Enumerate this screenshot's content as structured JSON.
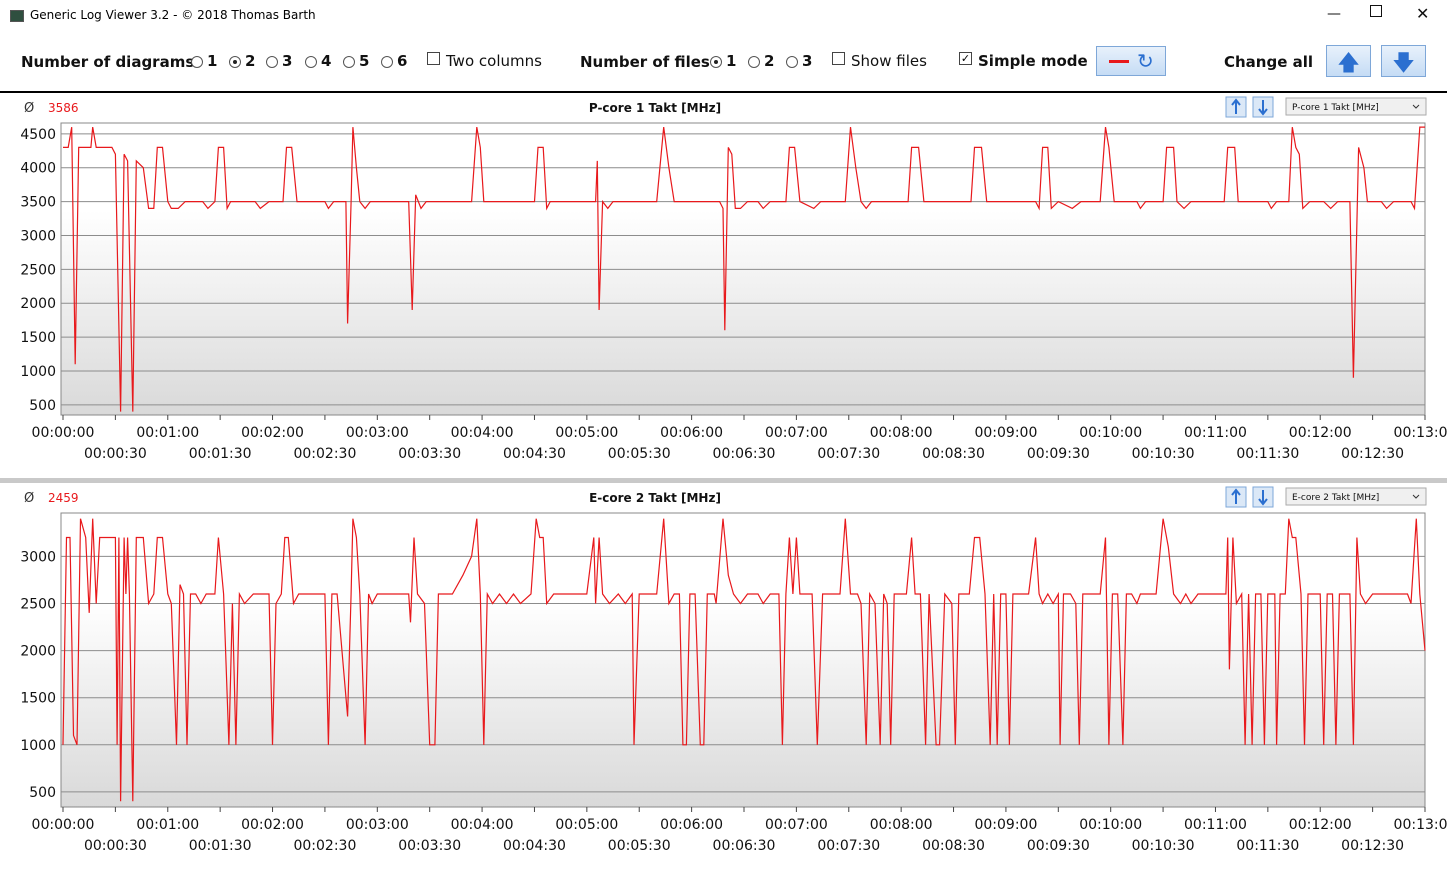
{
  "window": {
    "title": "Generic Log Viewer 3.2 - © 2018 Thomas Barth"
  },
  "toolbar": {
    "diagrams": {
      "label": "Number of diagrams",
      "options": [
        1,
        2,
        3,
        4,
        5,
        6
      ],
      "selected": 2
    },
    "two_columns": {
      "label": "Two columns",
      "checked": false
    },
    "files": {
      "label": "Number of files",
      "options": [
        1,
        2,
        3
      ],
      "selected": 1
    },
    "show_files": {
      "label": "Show files",
      "checked": false
    },
    "simple_mode": {
      "label": "Simple mode",
      "checked": true
    },
    "change_all": "Change all"
  },
  "chart_data": [
    {
      "type": "line",
      "title": "P-core 1 Takt [MHz]",
      "selector": "P-core 1 Takt [MHz]",
      "average_symbol": "Ø",
      "average": 3586,
      "xlim": [
        0,
        780
      ],
      "ylim": [
        350,
        4660
      ],
      "grid": true,
      "xticks": [
        {
          "value": 0,
          "label": "00:00:00"
        },
        {
          "value": 30,
          "label": "00:00:30"
        },
        {
          "value": 60,
          "label": "00:01:00"
        },
        {
          "value": 90,
          "label": "00:01:30"
        },
        {
          "value": 120,
          "label": "00:02:00"
        },
        {
          "value": 150,
          "label": "00:02:30"
        },
        {
          "value": 180,
          "label": "00:03:00"
        },
        {
          "value": 210,
          "label": "00:03:30"
        },
        {
          "value": 240,
          "label": "00:04:00"
        },
        {
          "value": 270,
          "label": "00:04:30"
        },
        {
          "value": 300,
          "label": "00:05:00"
        },
        {
          "value": 330,
          "label": "00:05:30"
        },
        {
          "value": 360,
          "label": "00:06:00"
        },
        {
          "value": 390,
          "label": "00:06:30"
        },
        {
          "value": 420,
          "label": "00:07:00"
        },
        {
          "value": 450,
          "label": "00:07:30"
        },
        {
          "value": 480,
          "label": "00:08:00"
        },
        {
          "value": 510,
          "label": "00:08:30"
        },
        {
          "value": 540,
          "label": "00:09:00"
        },
        {
          "value": 570,
          "label": "00:09:30"
        },
        {
          "value": 600,
          "label": "00:10:00"
        },
        {
          "value": 630,
          "label": "00:10:30"
        },
        {
          "value": 660,
          "label": "00:11:00"
        },
        {
          "value": 690,
          "label": "00:11:30"
        },
        {
          "value": 720,
          "label": "00:12:00"
        },
        {
          "value": 750,
          "label": "00:12:30"
        },
        {
          "value": 780,
          "label": "00:13:00"
        }
      ],
      "yticks": [
        500,
        1000,
        1500,
        2000,
        2500,
        3000,
        3500,
        4000,
        4500
      ],
      "x": [
        0,
        3,
        5,
        7,
        9,
        16,
        17,
        19,
        28,
        30,
        33,
        35,
        37,
        40,
        42,
        46,
        49,
        52,
        54,
        57,
        60,
        62,
        66,
        70,
        80,
        83,
        87,
        89,
        92,
        94,
        96,
        110,
        113,
        118,
        126,
        128,
        131,
        134,
        150,
        152,
        155,
        162,
        163,
        165,
        166,
        168,
        170,
        173,
        176,
        198,
        200,
        202,
        205,
        208,
        234,
        237,
        239,
        241,
        252,
        270,
        272,
        275,
        277,
        279,
        305,
        306,
        307,
        309,
        312,
        315,
        340,
        344,
        347,
        350,
        376,
        378,
        379,
        381,
        383,
        385,
        388,
        392,
        398,
        401,
        405,
        414,
        416,
        419,
        422,
        430,
        434,
        448,
        451,
        454,
        457,
        460,
        463,
        484,
        486,
        490,
        493,
        520,
        522,
        526,
        529,
        557,
        559,
        561,
        564,
        566,
        570,
        578,
        583,
        594,
        597,
        599,
        602,
        615,
        617,
        620,
        630,
        632,
        636,
        638,
        642,
        646,
        665,
        667,
        671,
        673,
        690,
        692,
        695,
        702,
        704,
        706,
        708,
        710,
        714,
        722,
        726,
        730,
        737,
        739,
        742,
        745,
        747,
        755,
        758,
        762,
        772,
        774,
        777,
        780
      ],
      "series": [
        {
          "color": "#e8191c",
          "values": [
            4300,
            4300,
            4600,
            1100,
            4300,
            4300,
            4600,
            4300,
            4300,
            4200,
            400,
            4200,
            4100,
            400,
            4100,
            4000,
            3400,
            3400,
            4300,
            4300,
            3500,
            3400,
            3400,
            3500,
            3500,
            3400,
            3500,
            4300,
            4300,
            3400,
            3500,
            3500,
            3400,
            3500,
            3500,
            4300,
            4300,
            3500,
            3500,
            3400,
            3500,
            3500,
            1700,
            3500,
            4600,
            4000,
            3500,
            3400,
            3500,
            3500,
            1900,
            3600,
            3400,
            3500,
            3500,
            4600,
            4300,
            3500,
            3500,
            3500,
            4300,
            4300,
            3400,
            3500,
            3500,
            4100,
            1900,
            3500,
            3400,
            3500,
            3500,
            4600,
            4000,
            3500,
            3500,
            3400,
            1600,
            4300,
            4200,
            3400,
            3400,
            3500,
            3500,
            3400,
            3500,
            3500,
            4300,
            4300,
            3500,
            3400,
            3500,
            3500,
            4600,
            4000,
            3500,
            3400,
            3500,
            3500,
            4300,
            4300,
            3500,
            3500,
            4300,
            4300,
            3500,
            3500,
            3400,
            4300,
            4300,
            3400,
            3500,
            3400,
            3500,
            3500,
            4600,
            4300,
            3500,
            3500,
            3400,
            3500,
            3500,
            4300,
            4300,
            3500,
            3400,
            3500,
            3500,
            4300,
            4300,
            3500,
            3500,
            3400,
            3500,
            3500,
            4600,
            4300,
            4200,
            3400,
            3500,
            3500,
            3400,
            3500,
            3500,
            900,
            4300,
            4000,
            3500,
            3500,
            3400,
            3500,
            3500,
            3400,
            4600,
            4600
          ]
        }
      ]
    },
    {
      "type": "line",
      "title": "E-core 2 Takt [MHz]",
      "selector": "E-core 2 Takt [MHz]",
      "average_symbol": "Ø",
      "average": 2459,
      "xlim": [
        0,
        780
      ],
      "ylim": [
        340,
        3460
      ],
      "grid": true,
      "xticks": [
        {
          "value": 0,
          "label": "00:00:00"
        },
        {
          "value": 30,
          "label": "00:00:30"
        },
        {
          "value": 60,
          "label": "00:01:00"
        },
        {
          "value": 90,
          "label": "00:01:30"
        },
        {
          "value": 120,
          "label": "00:02:00"
        },
        {
          "value": 150,
          "label": "00:02:30"
        },
        {
          "value": 180,
          "label": "00:03:00"
        },
        {
          "value": 210,
          "label": "00:03:30"
        },
        {
          "value": 240,
          "label": "00:04:00"
        },
        {
          "value": 270,
          "label": "00:04:30"
        },
        {
          "value": 300,
          "label": "00:05:00"
        },
        {
          "value": 330,
          "label": "00:05:30"
        },
        {
          "value": 360,
          "label": "00:06:00"
        },
        {
          "value": 390,
          "label": "00:06:30"
        },
        {
          "value": 420,
          "label": "00:07:00"
        },
        {
          "value": 450,
          "label": "00:07:30"
        },
        {
          "value": 480,
          "label": "00:08:00"
        },
        {
          "value": 510,
          "label": "00:08:30"
        },
        {
          "value": 540,
          "label": "00:09:00"
        },
        {
          "value": 570,
          "label": "00:09:30"
        },
        {
          "value": 600,
          "label": "00:10:00"
        },
        {
          "value": 630,
          "label": "00:10:30"
        },
        {
          "value": 660,
          "label": "00:11:00"
        },
        {
          "value": 690,
          "label": "00:11:30"
        },
        {
          "value": 720,
          "label": "00:12:00"
        },
        {
          "value": 750,
          "label": "00:12:30"
        },
        {
          "value": 780,
          "label": "00:13:00"
        }
      ],
      "yticks": [
        500,
        1000,
        1500,
        2000,
        2500,
        3000
      ],
      "x": [
        0,
        2,
        4,
        6,
        8,
        10,
        13,
        15,
        17,
        19,
        21,
        30,
        31,
        32,
        33,
        35,
        36,
        37,
        38,
        40,
        42,
        46,
        49,
        52,
        54,
        57,
        60,
        62,
        65,
        67,
        69,
        71,
        73,
        76,
        79,
        82,
        87,
        89,
        92,
        95,
        97,
        99,
        101,
        104,
        109,
        118,
        120,
        122,
        125,
        127,
        129,
        132,
        135,
        150,
        152,
        154,
        157,
        163,
        165,
        166,
        168,
        170,
        173,
        175,
        177,
        180,
        198,
        199,
        201,
        203,
        207,
        210,
        213,
        215,
        223,
        229,
        234,
        237,
        239,
        241,
        243,
        246,
        250,
        254,
        258,
        262,
        268,
        271,
        273,
        275,
        277,
        281,
        300,
        304,
        305,
        307,
        309,
        313,
        318,
        322,
        326,
        327,
        330,
        340,
        344,
        347,
        350,
        353,
        355,
        357,
        359,
        362,
        365,
        367,
        369,
        373,
        374,
        378,
        381,
        384,
        388,
        392,
        398,
        401,
        405,
        410,
        412,
        414,
        416,
        418,
        420,
        422,
        426,
        429,
        432,
        435,
        445,
        448,
        451,
        455,
        457,
        460,
        462,
        465,
        468,
        470,
        472,
        474,
        476,
        483,
        486,
        488,
        491,
        494,
        496,
        500,
        502,
        505,
        509,
        511,
        513,
        519,
        522,
        525,
        528,
        531,
        533,
        535,
        537,
        540,
        542,
        544,
        553,
        557,
        559,
        561,
        564,
        567,
        570,
        571,
        573,
        577,
        580,
        582,
        584,
        594,
        597,
        599,
        601,
        604,
        607,
        609,
        612,
        615,
        617,
        626,
        630,
        633,
        636,
        640,
        643,
        646,
        650,
        666,
        667,
        668,
        670,
        672,
        675,
        677,
        679,
        681,
        683,
        686,
        688,
        690,
        694,
        695,
        697,
        700,
        702,
        704,
        706,
        709,
        711,
        713,
        720,
        722,
        724,
        727,
        729,
        731,
        737,
        739,
        741,
        743,
        746,
        750,
        770,
        772,
        775,
        777,
        780
      ],
      "series": [
        {
          "color": "#e8191c",
          "values": [
            1000,
            3200,
            3200,
            1100,
            1000,
            3400,
            3200,
            2400,
            3400,
            2500,
            3200,
            3200,
            1000,
            3200,
            400,
            3200,
            2600,
            3200,
            2600,
            400,
            3200,
            3200,
            2500,
            2600,
            3200,
            3200,
            2600,
            2500,
            1000,
            2700,
            2600,
            1000,
            2600,
            2600,
            2500,
            2600,
            2600,
            3200,
            2600,
            1000,
            2500,
            1000,
            2600,
            2500,
            2600,
            2600,
            1000,
            2500,
            2600,
            3200,
            3200,
            2500,
            2600,
            2600,
            1000,
            2600,
            2600,
            1300,
            2600,
            3400,
            3200,
            2600,
            1000,
            2600,
            2500,
            2600,
            2600,
            2300,
            3200,
            2600,
            2500,
            1000,
            1000,
            2600,
            2600,
            2800,
            3000,
            3400,
            2600,
            1000,
            2600,
            2500,
            2600,
            2500,
            2600,
            2500,
            2600,
            3400,
            3200,
            3200,
            2500,
            2600,
            2600,
            3200,
            2500,
            3200,
            2600,
            2500,
            2600,
            2500,
            2600,
            1000,
            2600,
            2600,
            3400,
            2500,
            2600,
            2600,
            1000,
            1000,
            2600,
            2600,
            1000,
            1000,
            2600,
            2600,
            2500,
            3400,
            2800,
            2600,
            2500,
            2600,
            2600,
            2500,
            2600,
            2600,
            1000,
            2600,
            3200,
            2600,
            3200,
            2600,
            2600,
            2600,
            1000,
            2600,
            2600,
            3400,
            2600,
            2600,
            2500,
            1000,
            2600,
            2500,
            1000,
            2600,
            2500,
            1000,
            2600,
            2600,
            3200,
            2600,
            2600,
            1000,
            2600,
            1000,
            1000,
            2600,
            2500,
            1000,
            2600,
            2600,
            3200,
            3200,
            2600,
            1000,
            2600,
            1000,
            2600,
            2600,
            1000,
            2600,
            2600,
            3200,
            2600,
            2500,
            2600,
            2500,
            2600,
            1000,
            2600,
            2600,
            2500,
            1000,
            2600,
            2600,
            3200,
            1000,
            2600,
            2600,
            1000,
            2600,
            2600,
            2500,
            2600,
            2600,
            3400,
            3100,
            2600,
            2500,
            2600,
            2500,
            2600,
            2600,
            3200,
            1800,
            3200,
            2500,
            2600,
            1000,
            2600,
            1000,
            2600,
            2600,
            1000,
            2600,
            2600,
            1000,
            2600,
            2600,
            3400,
            3200,
            3200,
            2600,
            1000,
            2600,
            2600,
            1000,
            2600,
            2600,
            1000,
            2600,
            2600,
            1000,
            3200,
            2600,
            2500,
            2600,
            2600,
            2500,
            3400,
            2600,
            2000
          ]
        }
      ]
    }
  ]
}
